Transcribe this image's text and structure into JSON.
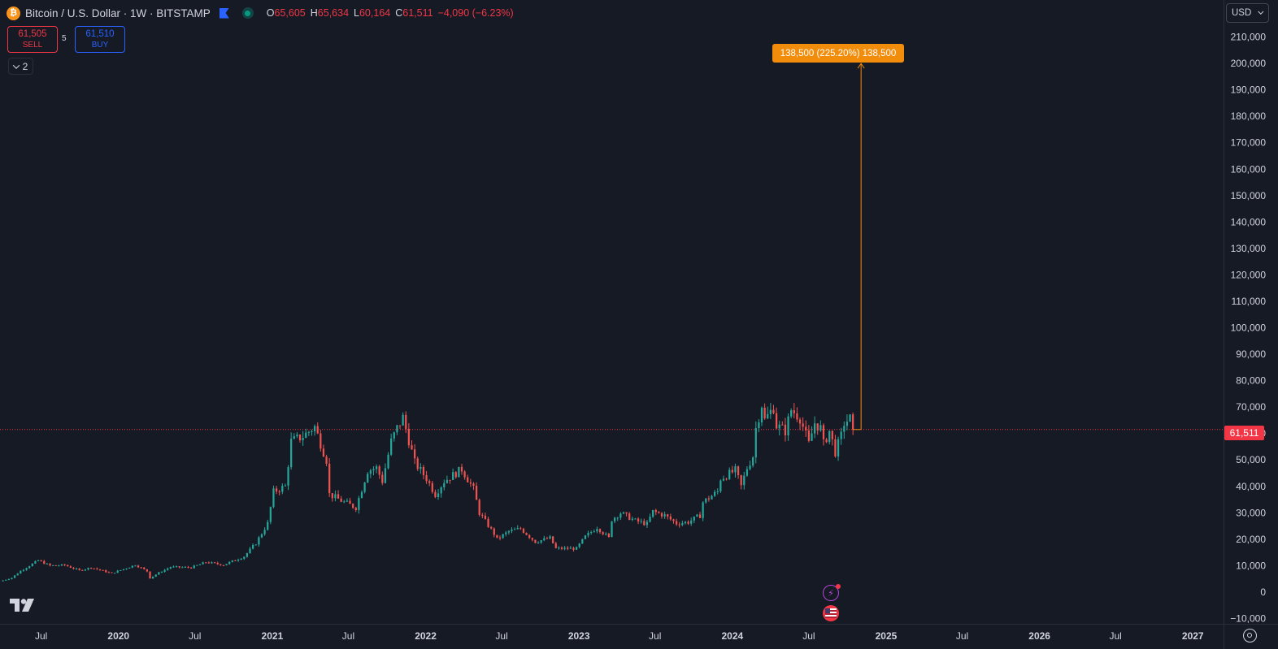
{
  "header": {
    "symbol_title": "Bitcoin / U.S. Dollar · 1W · BITSTAMP",
    "coin_icon": "bitcoin-icon",
    "ohlc": {
      "open_label": "O",
      "open": "65,605",
      "high_label": "H",
      "high": "65,634",
      "low_label": "L",
      "low": "60,164",
      "close_label": "C",
      "close": "61,511",
      "change": "−4,090 (−6.23%)"
    }
  },
  "trade": {
    "sell_price": "61,505",
    "sell_label": "SELL",
    "spread": "5",
    "buy_price": "61,510",
    "buy_label": "BUY"
  },
  "indicators_toggle": {
    "count": "2"
  },
  "currency": "USD",
  "current_price_badge": "61,511",
  "annotation": {
    "label": "138,500 (225.20%) 138,500",
    "value": 200000
  },
  "colors": {
    "background": "#161a25",
    "up": "#26a69a",
    "down": "#ef5350",
    "annotation": "#f28c0b",
    "price_line": "#f23645"
  },
  "chart_data": {
    "type": "candlestick",
    "interval": "1W",
    "price_axis_labels": [
      "210,000",
      "200,000",
      "190,000",
      "180,000",
      "170,000",
      "160,000",
      "150,000",
      "140,000",
      "130,000",
      "120,000",
      "110,000",
      "100,000",
      "90,000",
      "80,000",
      "70,000",
      "60,000",
      "50,000",
      "40,000",
      "30,000",
      "20,000",
      "10,000",
      "0",
      "−10,000"
    ],
    "price_axis_values": [
      210000,
      200000,
      190000,
      180000,
      170000,
      160000,
      150000,
      140000,
      130000,
      120000,
      110000,
      100000,
      90000,
      80000,
      70000,
      60000,
      50000,
      40000,
      30000,
      20000,
      10000,
      0,
      -10000
    ],
    "ylim": [
      -12000,
      224000
    ],
    "time_axis_labels": [
      {
        "label": "Jul",
        "date": "2019-07-01"
      },
      {
        "label": "2020",
        "date": "2020-01-01"
      },
      {
        "label": "Jul",
        "date": "2020-07-01"
      },
      {
        "label": "2021",
        "date": "2021-01-01"
      },
      {
        "label": "Jul",
        "date": "2021-07-01"
      },
      {
        "label": "2022",
        "date": "2022-01-01"
      },
      {
        "label": "Jul",
        "date": "2022-07-01"
      },
      {
        "label": "2023",
        "date": "2023-01-01"
      },
      {
        "label": "Jul",
        "date": "2023-07-01"
      },
      {
        "label": "2024",
        "date": "2024-01-01"
      },
      {
        "label": "Jul",
        "date": "2024-07-01"
      },
      {
        "label": "2025",
        "date": "2025-01-01"
      },
      {
        "label": "Jul",
        "date": "2025-07-01"
      },
      {
        "label": "2026",
        "date": "2026-01-01"
      },
      {
        "label": "Jul",
        "date": "2026-07-01"
      },
      {
        "label": "2027",
        "date": "2027-01-01"
      }
    ],
    "xlim": [
      "2019-03-25",
      "2027-03-15"
    ],
    "current_price": 61511,
    "price_path": [
      [
        "2019-03-25",
        4100
      ],
      [
        "2019-04-22",
        5400
      ],
      [
        "2019-05-13",
        8000
      ],
      [
        "2019-06-24",
        12000
      ],
      [
        "2019-07-22",
        10000
      ],
      [
        "2019-08-26",
        10200
      ],
      [
        "2019-09-30",
        8200
      ],
      [
        "2019-10-28",
        9300
      ],
      [
        "2019-12-16",
        7100
      ],
      [
        "2020-01-13",
        8700
      ],
      [
        "2020-02-10",
        10300
      ],
      [
        "2020-03-09",
        7900
      ],
      [
        "2020-03-16",
        5300
      ],
      [
        "2020-04-06",
        7300
      ],
      [
        "2020-05-04",
        9500
      ],
      [
        "2020-06-22",
        9300
      ],
      [
        "2020-07-27",
        11300
      ],
      [
        "2020-09-07",
        10300
      ],
      [
        "2020-10-26",
        13500
      ],
      [
        "2020-11-23",
        18500
      ],
      [
        "2020-12-21",
        26000
      ],
      [
        "2021-01-04",
        38000
      ],
      [
        "2021-02-01",
        40000
      ],
      [
        "2021-02-15",
        57000
      ],
      [
        "2021-03-15",
        59000
      ],
      [
        "2021-04-12",
        62500
      ],
      [
        "2021-05-10",
        50000
      ],
      [
        "2021-05-17",
        37000
      ],
      [
        "2021-06-21",
        34000
      ],
      [
        "2021-07-19",
        32000
      ],
      [
        "2021-08-16",
        46000
      ],
      [
        "2021-09-06",
        47000
      ],
      [
        "2021-09-20",
        42000
      ],
      [
        "2021-10-11",
        57000
      ],
      [
        "2021-10-25",
        62000
      ],
      [
        "2021-11-08",
        66000
      ],
      [
        "2021-12-06",
        49000
      ],
      [
        "2022-01-03",
        43000
      ],
      [
        "2022-01-24",
        37000
      ],
      [
        "2022-02-14",
        42000
      ],
      [
        "2022-03-28",
        46500
      ],
      [
        "2022-04-25",
        39000
      ],
      [
        "2022-05-09",
        30000
      ],
      [
        "2022-06-13",
        22000
      ],
      [
        "2022-06-20",
        20000
      ],
      [
        "2022-07-18",
        23000
      ],
      [
        "2022-08-15",
        24000
      ],
      [
        "2022-09-19",
        19000
      ],
      [
        "2022-10-24",
        20500
      ],
      [
        "2022-11-07",
        16500
      ],
      [
        "2022-12-26",
        16500
      ],
      [
        "2023-01-16",
        21000
      ],
      [
        "2023-02-13",
        24500
      ],
      [
        "2023-03-13",
        20500
      ],
      [
        "2023-03-20",
        27500
      ],
      [
        "2023-04-10",
        30000
      ],
      [
        "2023-05-15",
        27000
      ],
      [
        "2023-06-12",
        25800
      ],
      [
        "2023-06-26",
        30500
      ],
      [
        "2023-07-24",
        29000
      ],
      [
        "2023-08-21",
        26000
      ],
      [
        "2023-09-18",
        26500
      ],
      [
        "2023-10-16",
        29000
      ],
      [
        "2023-10-23",
        34000
      ],
      [
        "2023-11-27",
        38000
      ],
      [
        "2023-12-04",
        43000
      ],
      [
        "2024-01-08",
        46000
      ],
      [
        "2024-01-22",
        40000
      ],
      [
        "2024-02-05",
        47000
      ],
      [
        "2024-02-19",
        51500
      ],
      [
        "2024-02-26",
        62000
      ],
      [
        "2024-03-11",
        71000
      ],
      [
        "2024-03-18",
        65000
      ],
      [
        "2024-04-08",
        70000
      ],
      [
        "2024-04-15",
        63000
      ],
      [
        "2024-05-06",
        61000
      ],
      [
        "2024-05-20",
        69000
      ],
      [
        "2024-06-10",
        66000
      ],
      [
        "2024-07-01",
        56000
      ],
      [
        "2024-07-15",
        64000
      ],
      [
        "2024-07-29",
        62000
      ],
      [
        "2024-08-05",
        56000
      ],
      [
        "2024-08-19",
        61000
      ],
      [
        "2024-09-02",
        53000
      ],
      [
        "2024-09-16",
        59000
      ],
      [
        "2024-09-23",
        64000
      ],
      [
        "2024-10-07",
        65605
      ],
      [
        "2024-10-14",
        61511
      ]
    ]
  }
}
